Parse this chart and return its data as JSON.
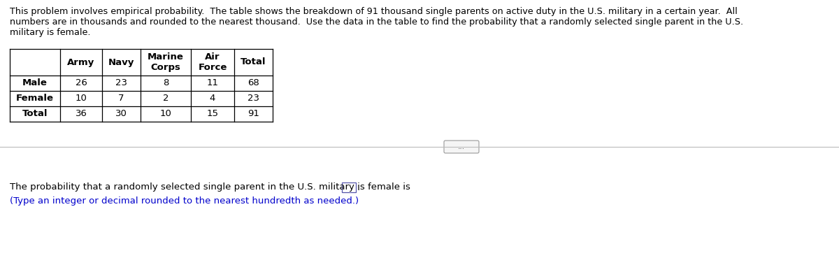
{
  "description_text": "This problem involves empirical probability.  The table shows the breakdown of 91 thousand single parents on active duty in the U.S. military in a certain year.  All\nnumbers are in thousands and rounded to the nearest thousand.  Use the data in the table to find the probability that a randomly selected single parent in the U.S.\nmilitary is female.",
  "table": {
    "col_headers": [
      "",
      "Army",
      "Navy",
      "Marine\nCorps",
      "Air\nForce",
      "Total"
    ],
    "row_headers": [
      "Male",
      "Female",
      "Total"
    ],
    "data": [
      [
        26,
        23,
        8,
        11,
        68
      ],
      [
        10,
        7,
        2,
        4,
        23
      ],
      [
        36,
        30,
        10,
        15,
        91
      ]
    ]
  },
  "answer_text": "The probability that a randomly selected single parent in the U.S. military is female is",
  "answer_note": "(Type an integer or decimal rounded to the nearest hundredth as needed.)",
  "bg_color": "#ffffff",
  "text_color": "#000000",
  "link_color": "#0000cc",
  "font_size_desc": 9.2,
  "font_size_table": 9.5,
  "font_size_answer": 9.5
}
